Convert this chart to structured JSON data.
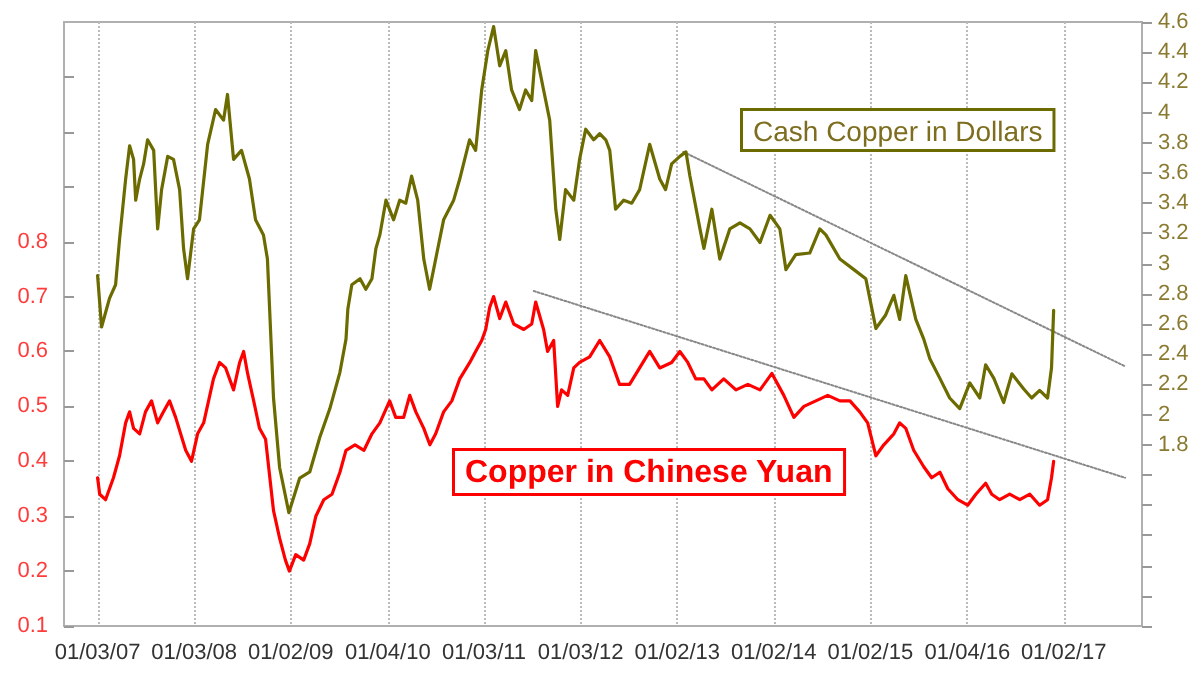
{
  "chart_data": {
    "type": "line",
    "xlim": [
      "2006-08-29",
      "2017-10-25"
    ],
    "xticks": [
      {
        "value": "2007-01-03",
        "label": "01/03/07"
      },
      {
        "value": "2008-01-03",
        "label": "01/03/08"
      },
      {
        "value": "2009-01-02",
        "label": "01/02/09"
      },
      {
        "value": "2010-01-04",
        "label": "01/04/10"
      },
      {
        "value": "2011-01-03",
        "label": "01/03/11"
      },
      {
        "value": "2012-01-03",
        "label": "01/03/12"
      },
      {
        "value": "2013-01-02",
        "label": "01/02/13"
      },
      {
        "value": "2014-01-02",
        "label": "01/02/14"
      },
      {
        "value": "2015-01-02",
        "label": "01/02/15"
      },
      {
        "value": "2016-01-04",
        "label": "01/04/16"
      },
      {
        "value": "2017-01-02",
        "label": "01/02/17"
      }
    ],
    "ylim": [
      0.1,
      1.2
    ],
    "yticks": [
      0.1,
      0.2,
      0.3,
      0.4,
      0.5,
      0.6,
      0.7,
      0.8,
      {
        "value": 0.9,
        "label": null
      },
      {
        "value": 1.0,
        "label": null
      },
      {
        "value": 1.1,
        "label": null
      }
    ],
    "y2lim": [
      0.6,
      4.6
    ],
    "y2ticks": [
      {
        "value": 0.6,
        "label": null
      },
      {
        "value": 0.8,
        "label": null
      },
      {
        "value": 1.0,
        "label": null
      },
      {
        "value": 1.2,
        "label": null
      },
      {
        "value": 1.4,
        "label": null
      },
      {
        "value": 1.6,
        "label": null
      },
      1.8,
      2,
      2.2,
      2.4,
      2.6,
      2.8,
      3,
      3.2,
      3.4,
      3.6,
      3.8,
      4,
      4.2,
      4.4,
      4.6
    ],
    "grid": "x",
    "marker": "none",
    "series": [
      {
        "name": "Cash Copper in Dollars",
        "color": "#6b6b00",
        "axis": "y2",
        "x": [
          "2007-01-03",
          "2007-01-18",
          "2007-02-17",
          "2007-03-12",
          "2007-03-27",
          "2007-04-19",
          "2007-05-04",
          "2007-05-19",
          "2007-05-27",
          "2007-06-11",
          "2007-06-26",
          "2007-07-11",
          "2007-08-03",
          "2007-08-18",
          "2007-09-02",
          "2007-09-25",
          "2007-10-17",
          "2007-11-09",
          "2007-11-24",
          "2007-12-09",
          "2008-01-01",
          "2008-01-23",
          "2008-02-23",
          "2008-03-24",
          "2008-04-23",
          "2008-05-08",
          "2008-05-31",
          "2008-06-30",
          "2008-07-30",
          "2008-08-22",
          "2008-09-21",
          "2008-10-06",
          "2008-10-29",
          "2008-11-21",
          "2008-12-26",
          "2009-02-05",
          "2009-03-15",
          "2009-04-22",
          "2009-05-30",
          "2009-07-07",
          "2009-07-30",
          "2009-08-06",
          "2009-08-21",
          "2009-09-21",
          "2009-10-13",
          "2009-11-05",
          "2009-11-20",
          "2009-12-05",
          "2009-12-28",
          "2010-01-26",
          "2010-02-18",
          "2010-03-13",
          "2010-04-04",
          "2010-04-27",
          "2010-05-20",
          "2010-06-11",
          "2010-07-04",
          "2010-08-03",
          "2010-09-10",
          "2010-10-03",
          "2010-11-09",
          "2010-12-02",
          "2010-12-25",
          "2011-01-17",
          "2011-02-08",
          "2011-03-03",
          "2011-03-26",
          "2011-04-17",
          "2011-05-17",
          "2011-06-09",
          "2011-07-02",
          "2011-07-17",
          "2011-08-16",
          "2011-09-08",
          "2011-10-01",
          "2011-10-16",
          "2011-11-07",
          "2011-12-08",
          "2011-12-30",
          "2012-01-22",
          "2012-02-21",
          "2012-03-15",
          "2012-04-07",
          "2012-04-22",
          "2012-05-14",
          "2012-06-14",
          "2012-07-14",
          "2012-08-13",
          "2012-09-20",
          "2012-10-28",
          "2012-11-19",
          "2012-12-12",
          "2013-01-12",
          "2013-02-04",
          "2013-02-19",
          "2013-03-29",
          "2013-04-13",
          "2013-05-13",
          "2013-06-12",
          "2013-07-20",
          "2013-08-27",
          "2013-10-04",
          "2013-11-11",
          "2013-12-19",
          "2014-01-25",
          "2014-02-17",
          "2014-03-26",
          "2014-05-18",
          "2014-06-25",
          "2014-07-18",
          "2014-09-09",
          "2014-11-01",
          "2014-12-16",
          "2015-01-08",
          "2015-01-23",
          "2015-03-01",
          "2015-04-01",
          "2015-04-23",
          "2015-05-16",
          "2015-06-23",
          "2015-07-23",
          "2015-08-15",
          "2015-09-22",
          "2015-10-29",
          "2015-12-06",
          "2016-01-13",
          "2016-02-20",
          "2016-03-13",
          "2016-04-13",
          "2016-05-20",
          "2016-06-20",
          "2016-08-04",
          "2016-09-03",
          "2016-10-03",
          "2016-11-02",
          "2016-11-17",
          "2016-11-25"
        ],
        "values": [
          2.92,
          2.58,
          2.77,
          2.86,
          3.16,
          3.56,
          3.78,
          3.69,
          3.42,
          3.56,
          3.66,
          3.82,
          3.75,
          3.23,
          3.49,
          3.71,
          3.69,
          3.49,
          3.1,
          2.9,
          3.23,
          3.29,
          3.79,
          4.02,
          3.95,
          4.12,
          3.69,
          3.75,
          3.56,
          3.29,
          3.19,
          3.03,
          2.11,
          1.65,
          1.35,
          1.58,
          1.62,
          1.85,
          2.04,
          2.28,
          2.5,
          2.7,
          2.86,
          2.9,
          2.83,
          2.9,
          3.1,
          3.19,
          3.42,
          3.29,
          3.42,
          3.4,
          3.58,
          3.42,
          3.03,
          2.83,
          3.03,
          3.29,
          3.42,
          3.56,
          3.82,
          3.75,
          4.15,
          4.41,
          4.57,
          4.31,
          4.41,
          4.15,
          4.02,
          4.15,
          4.08,
          4.41,
          4.15,
          3.95,
          3.36,
          3.16,
          3.49,
          3.42,
          3.69,
          3.89,
          3.82,
          3.86,
          3.82,
          3.75,
          3.36,
          3.42,
          3.4,
          3.49,
          3.79,
          3.56,
          3.49,
          3.66,
          3.71,
          3.74,
          3.58,
          3.23,
          3.1,
          3.36,
          3.03,
          3.23,
          3.27,
          3.23,
          3.14,
          3.32,
          3.23,
          2.96,
          3.06,
          3.07,
          3.23,
          3.19,
          3.03,
          2.96,
          2.9,
          2.7,
          2.57,
          2.66,
          2.79,
          2.63,
          2.92,
          2.63,
          2.5,
          2.37,
          2.24,
          2.11,
          2.04,
          2.21,
          2.11,
          2.33,
          2.24,
          2.08,
          2.27,
          2.17,
          2.11,
          2.16,
          2.11,
          2.31,
          2.69
        ]
      },
      {
        "name": "Copper in Chinese Yuan",
        "color": "#ff0000",
        "x": [
          "2007-01-03",
          "2007-01-11",
          "2007-02-02",
          "2007-03-04",
          "2007-03-27",
          "2007-04-19",
          "2007-05-04",
          "2007-05-19",
          "2007-06-11",
          "2007-07-03",
          "2007-07-26",
          "2007-08-18",
          "2007-09-09",
          "2007-10-02",
          "2007-10-25",
          "2007-12-02",
          "2007-12-24",
          "2008-01-16",
          "2008-02-08",
          "2008-03-16",
          "2008-04-08",
          "2008-05-01",
          "2008-05-31",
          "2008-06-23",
          "2008-07-08",
          "2008-07-23",
          "2008-08-15",
          "2008-09-06",
          "2008-09-29",
          "2008-10-29",
          "2008-11-21",
          "2008-12-13",
          "2008-12-28",
          "2009-01-21",
          "2009-02-20",
          "2009-03-15",
          "2009-04-07",
          "2009-05-07",
          "2009-06-07",
          "2009-07-07",
          "2009-07-30",
          "2009-09-02",
          "2009-10-06",
          "2009-11-05",
          "2009-12-05",
          "2010-01-11",
          "2010-02-03",
          "2010-03-05",
          "2010-03-28",
          "2010-04-20",
          "2010-05-20",
          "2010-06-12",
          "2010-07-04",
          "2010-08-03",
          "2010-09-03",
          "2010-10-03",
          "2010-11-10",
          "2010-12-02",
          "2010-12-25",
          "2011-01-09",
          "2011-01-24",
          "2011-02-08",
          "2011-03-03",
          "2011-03-26",
          "2011-04-25",
          "2011-06-02",
          "2011-07-02",
          "2011-07-17",
          "2011-08-16",
          "2011-08-31",
          "2011-09-23",
          "2011-10-08",
          "2011-10-23",
          "2011-11-15",
          "2011-12-08",
          "2011-12-30",
          "2012-02-06",
          "2012-03-15",
          "2012-04-22",
          "2012-05-29",
          "2012-07-06",
          "2012-08-13",
          "2012-09-20",
          "2012-10-28",
          "2012-12-12",
          "2013-01-12",
          "2013-02-11",
          "2013-03-13",
          "2013-04-13",
          "2013-05-13",
          "2013-06-27",
          "2013-08-12",
          "2013-09-26",
          "2013-11-11",
          "2013-12-26",
          "2014-02-09",
          "2014-03-19",
          "2014-04-26",
          "2014-06-10",
          "2014-07-25",
          "2014-09-09",
          "2014-10-17",
          "2014-11-23",
          "2014-12-23",
          "2015-01-23",
          "2015-02-22",
          "2015-04-01",
          "2015-04-23",
          "2015-05-16",
          "2015-06-15",
          "2015-07-23",
          "2015-08-22",
          "2015-09-22",
          "2015-10-22",
          "2015-11-29",
          "2016-01-05",
          "2016-02-05",
          "2016-03-13",
          "2016-04-05",
          "2016-05-05",
          "2016-06-12",
          "2016-07-20",
          "2016-08-27",
          "2016-10-03",
          "2016-11-02",
          "2016-11-17",
          "2016-11-25"
        ],
        "values": [
          0.37,
          0.34,
          0.33,
          0.37,
          0.41,
          0.47,
          0.49,
          0.46,
          0.45,
          0.49,
          0.51,
          0.47,
          0.49,
          0.51,
          0.48,
          0.42,
          0.4,
          0.45,
          0.47,
          0.55,
          0.58,
          0.57,
          0.53,
          0.58,
          0.6,
          0.56,
          0.51,
          0.46,
          0.44,
          0.31,
          0.26,
          0.22,
          0.2,
          0.23,
          0.22,
          0.25,
          0.3,
          0.33,
          0.34,
          0.38,
          0.42,
          0.43,
          0.42,
          0.45,
          0.47,
          0.51,
          0.48,
          0.48,
          0.52,
          0.49,
          0.46,
          0.43,
          0.45,
          0.49,
          0.51,
          0.55,
          0.58,
          0.6,
          0.62,
          0.64,
          0.68,
          0.7,
          0.66,
          0.69,
          0.65,
          0.64,
          0.65,
          0.69,
          0.64,
          0.6,
          0.62,
          0.5,
          0.53,
          0.52,
          0.57,
          0.58,
          0.59,
          0.62,
          0.59,
          0.54,
          0.54,
          0.57,
          0.6,
          0.57,
          0.58,
          0.6,
          0.58,
          0.55,
          0.55,
          0.53,
          0.55,
          0.53,
          0.54,
          0.53,
          0.56,
          0.52,
          0.48,
          0.5,
          0.51,
          0.52,
          0.51,
          0.51,
          0.49,
          0.47,
          0.41,
          0.43,
          0.45,
          0.47,
          0.46,
          0.42,
          0.39,
          0.37,
          0.38,
          0.35,
          0.33,
          0.32,
          0.34,
          0.36,
          0.34,
          0.33,
          0.34,
          0.33,
          0.34,
          0.32,
          0.33,
          0.37,
          0.4
        ]
      },
      {
        "type": "line",
        "color": "#888888",
        "axis": "y2",
        "line_style": "dotted",
        "x": [
          "2013-01-25",
          "2017-08-22"
        ],
        "values": [
          3.74,
          2.32
        ]
      },
      {
        "type": "line",
        "color": "#888888",
        "line_style": "dotted",
        "x": [
          "2011-07-10",
          "2017-08-22"
        ],
        "values": [
          0.71,
          0.37
        ]
      }
    ]
  }
}
